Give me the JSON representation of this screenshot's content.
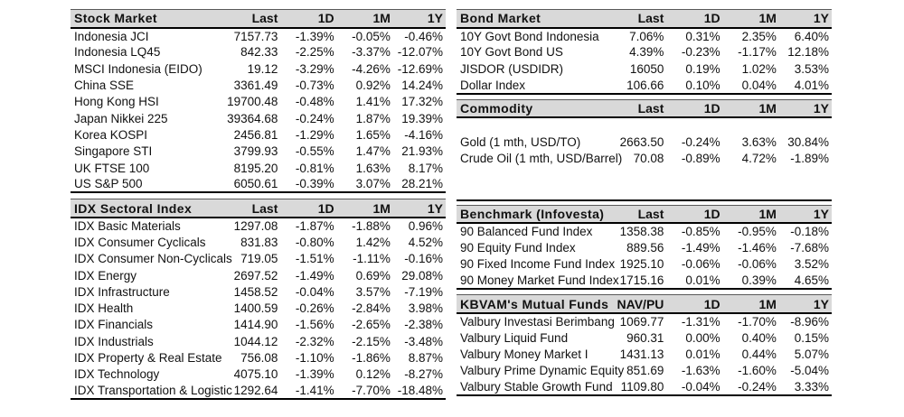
{
  "style": {
    "header_bg": "#d9d9d9",
    "thick_border": "#000000",
    "thin_border": "#595959",
    "text_color": "#111111",
    "page_bg": "#ffffff"
  },
  "tables": {
    "stock_market": {
      "title": "Stock Market",
      "columns": [
        "Last",
        "1D",
        "1M",
        "1Y"
      ],
      "rows": [
        [
          "Indonesia JCI",
          "7157.73",
          "-1.39%",
          "-0.05%",
          "-0.46%"
        ],
        [
          "Indonesia LQ45",
          "842.33",
          "-2.25%",
          "-3.37%",
          "-12.07%"
        ],
        [
          "MSCI Indonesia (EIDO)",
          "19.12",
          "-3.29%",
          "-4.26%",
          "-12.69%"
        ],
        [
          "China SSE",
          "3361.49",
          "-0.73%",
          "0.92%",
          "14.24%"
        ],
        [
          "Hong Kong HSI",
          "19700.48",
          "-0.48%",
          "1.41%",
          "17.32%"
        ],
        [
          "Japan Nikkei 225",
          "39364.68",
          "-0.24%",
          "1.87%",
          "19.39%"
        ],
        [
          "Korea KOSPI",
          "2456.81",
          "-1.29%",
          "1.65%",
          "-4.16%"
        ],
        [
          "Singapore STI",
          "3799.93",
          "-0.55%",
          "1.47%",
          "21.93%"
        ],
        [
          "UK FTSE 100",
          "8195.20",
          "-0.81%",
          "1.63%",
          "8.17%"
        ],
        [
          "US S&P 500",
          "6050.61",
          "-0.39%",
          "3.07%",
          "28.21%"
        ]
      ]
    },
    "idx_sectoral": {
      "title": "IDX Sectoral Index",
      "columns": [
        "Last",
        "1D",
        "1M",
        "1Y"
      ],
      "rows": [
        [
          "IDX Basic Materials",
          "1297.08",
          "-1.87%",
          "-1.88%",
          "0.96%"
        ],
        [
          "IDX Consumer Cyclicals",
          "831.83",
          "-0.80%",
          "1.42%",
          "4.52%"
        ],
        [
          "IDX Consumer Non-Cyclicals",
          "719.05",
          "-1.51%",
          "-1.11%",
          "-0.16%"
        ],
        [
          "IDX Energy",
          "2697.52",
          "-1.49%",
          "0.69%",
          "29.08%"
        ],
        [
          "IDX Infrastructure",
          "1458.52",
          "-0.04%",
          "3.57%",
          "-7.19%"
        ],
        [
          "IDX Health",
          "1400.59",
          "-0.26%",
          "-2.84%",
          "3.98%"
        ],
        [
          "IDX Financials",
          "1414.90",
          "-1.56%",
          "-2.65%",
          "-2.38%"
        ],
        [
          "IDX Industrials",
          "1044.12",
          "-2.32%",
          "-2.15%",
          "-3.48%"
        ],
        [
          "IDX Property & Real Estate",
          "756.08",
          "-1.10%",
          "-1.86%",
          "8.87%"
        ],
        [
          "IDX Technology",
          "4075.10",
          "-1.39%",
          "0.12%",
          "-8.27%"
        ],
        [
          "IDX Transportation & Logistic",
          "1292.64",
          "-1.41%",
          "-7.70%",
          "-18.48%"
        ]
      ]
    },
    "bond_market": {
      "title": "Bond Market",
      "columns": [
        "Last",
        "1D",
        "1M",
        "1Y"
      ],
      "rows": [
        [
          "10Y Govt Bond Indonesia",
          "7.06%",
          "0.31%",
          "2.35%",
          "6.40%"
        ],
        [
          "10Y Govt Bond US",
          "4.39%",
          "-0.23%",
          "-1.17%",
          "12.18%"
        ],
        [
          "JISDOR (USDIDR)",
          "16050",
          "0.19%",
          "1.02%",
          "3.53%"
        ],
        [
          "Dollar Index",
          "106.66",
          "0.10%",
          "0.04%",
          "4.01%"
        ]
      ]
    },
    "commodity": {
      "title": "Commodity",
      "columns": [
        "Last",
        "1D",
        "1M",
        "1Y"
      ],
      "rows": [
        [
          "",
          "",
          "",
          "",
          ""
        ],
        [
          "Gold (1 mth, USD/TO)",
          "2663.50",
          "-0.24%",
          "3.63%",
          "30.84%"
        ],
        [
          "Crude Oil (1 mth, USD/Barrel)",
          "70.08",
          "-0.89%",
          "4.72%",
          "-1.89%"
        ],
        [
          "",
          "",
          "",
          "",
          ""
        ],
        [
          "",
          "",
          "",
          "",
          ""
        ]
      ]
    },
    "benchmark": {
      "title": "Benchmark (Infovesta)",
      "columns": [
        "Last",
        "1D",
        "1M",
        "1Y"
      ],
      "rows": [
        [
          "90 Balanced Fund Index",
          "1358.38",
          "-0.85%",
          "-0.95%",
          "-0.18%"
        ],
        [
          "90 Equity Fund Index",
          "889.56",
          "-1.49%",
          "-1.46%",
          "-7.68%"
        ],
        [
          "90 Fixed Income Fund Index",
          "1925.10",
          "-0.06%",
          "-0.06%",
          "3.52%"
        ],
        [
          "90 Money Market Fund Index",
          "1715.16",
          "0.01%",
          "0.39%",
          "4.65%"
        ]
      ]
    },
    "mutual_funds": {
      "title": "KBVAM's Mutual Funds",
      "columns": [
        "NAV/PU",
        "1D",
        "1M",
        "1Y"
      ],
      "rows": [
        [
          "Valbury Investasi Berimbang",
          "1069.77",
          "-1.31%",
          "-1.70%",
          "-8.96%"
        ],
        [
          "Valbury Liquid Fund",
          "960.31",
          "0.00%",
          "0.40%",
          "0.15%"
        ],
        [
          "Valbury Money Market I",
          "1431.13",
          "0.01%",
          "0.44%",
          "5.07%"
        ],
        [
          "Valbury Prime Dynamic Equity",
          "851.69",
          "-1.63%",
          "-1.60%",
          "-5.04%"
        ],
        [
          "Valbury Stable Growth Fund",
          "1109.80",
          "-0.04%",
          "-0.24%",
          "3.33%"
        ]
      ]
    }
  }
}
